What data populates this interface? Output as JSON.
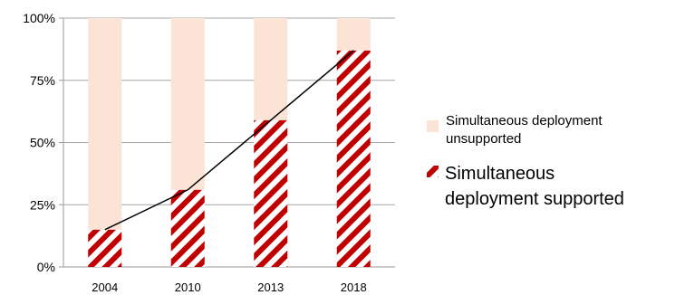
{
  "chart_data": {
    "type": "bar",
    "stacked": true,
    "percent": true,
    "categories": [
      "2004",
      "2010",
      "2013",
      "2018"
    ],
    "series": [
      {
        "name": "Simultaneous deployment supported",
        "values": [
          15,
          31,
          59,
          87
        ],
        "color": "#c00000",
        "pattern": "diagonal-stripes"
      },
      {
        "name": "Simultaneous deployment unsupported",
        "values": [
          85,
          69,
          41,
          13
        ],
        "color": "#fbe4d5",
        "pattern": "solid"
      }
    ],
    "trend_line": {
      "series": "Simultaneous deployment supported",
      "color": "#000000"
    },
    "ylim": [
      0,
      100
    ],
    "yticks": [
      "0%",
      "25%",
      "50%",
      "75%",
      "100%"
    ],
    "grid": true,
    "legend_position": "right"
  },
  "legend": {
    "unsupported_line1": "Simultaneous deployment",
    "unsupported_line2": "unsupported",
    "supported_line1": "Simultaneous",
    "supported_line2": "deployment supported"
  }
}
